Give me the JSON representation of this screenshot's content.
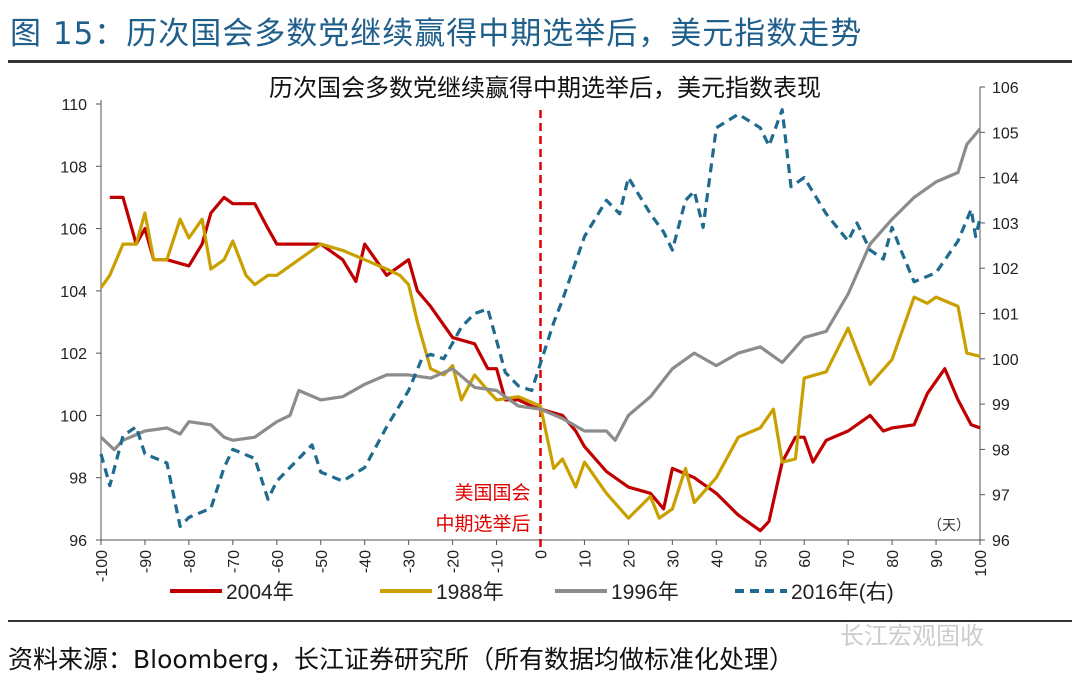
{
  "header": {
    "title": "图 15：历次国会多数党继续赢得中期选举后，美元指数走势"
  },
  "footer": {
    "source": "资料来源：Bloomberg，长江证券研究所（所有数据均做标准化处理）",
    "watermark": "长江宏观固收"
  },
  "chart_data": {
    "type": "line",
    "title": "历次国会多数党继续赢得中期选举后，美元指数表现",
    "xlabel": "（天）",
    "xlim": [
      -100,
      100
    ],
    "xticks": [
      "-100",
      "-90",
      "-80",
      "-70",
      "-60",
      "-50",
      "-40",
      "-30",
      "-20",
      "-10",
      "0",
      "10",
      "20",
      "30",
      "40",
      "50",
      "60",
      "70",
      "80",
      "90",
      "100"
    ],
    "ylim_left": [
      96,
      110
    ],
    "yticks_left": [
      "96",
      "98",
      "100",
      "102",
      "104",
      "106",
      "108",
      "110"
    ],
    "ylim_right": [
      96,
      106
    ],
    "yticks_right": [
      "96",
      "97",
      "98",
      "99",
      "100",
      "101",
      "102",
      "103",
      "104",
      "105",
      "106"
    ],
    "annotation": [
      "美国国会",
      "中期选举后"
    ],
    "legend_position": "bottom",
    "series": [
      {
        "name": "2004年",
        "axis": "left",
        "color": "#c00000",
        "dash": false,
        "x": [
          -98,
          -95,
          -92,
          -90,
          -88,
          -85,
          -80,
          -77,
          -75,
          -72,
          -70,
          -65,
          -62,
          -60,
          -55,
          -50,
          -45,
          -42,
          -40,
          -35,
          -30,
          -28,
          -25,
          -20,
          -15,
          -12,
          -10,
          -8,
          -5,
          -2,
          0,
          5,
          8,
          10,
          15,
          20,
          25,
          28,
          30,
          35,
          40,
          45,
          50,
          52,
          55,
          58,
          60,
          62,
          65,
          70,
          75,
          78,
          80,
          85,
          88,
          92,
          95,
          98,
          100
        ],
        "y": [
          107,
          107,
          105.5,
          106,
          105,
          105,
          104.8,
          105.5,
          106.5,
          107,
          106.8,
          106.8,
          106,
          105.5,
          105.5,
          105.5,
          105,
          104.3,
          105.5,
          104.5,
          105,
          104,
          103.5,
          102.5,
          102.3,
          101.5,
          101.5,
          100.5,
          100.5,
          100.3,
          100.2,
          100,
          99.5,
          99,
          98.2,
          97.7,
          97.5,
          97,
          98.3,
          98,
          97.5,
          96.8,
          96.3,
          96.6,
          98.5,
          99.3,
          99.3,
          98.5,
          99.2,
          99.5,
          100,
          99.5,
          99.6,
          99.7,
          100.7,
          101.5,
          100.5,
          99.7,
          99.6
        ]
      },
      {
        "name": "1988年",
        "axis": "left",
        "color": "#c9a000",
        "dash": false,
        "x": [
          -100,
          -98,
          -95,
          -92,
          -90,
          -88,
          -85,
          -82,
          -80,
          -77,
          -75,
          -72,
          -70,
          -67,
          -65,
          -62,
          -60,
          -55,
          -50,
          -45,
          -40,
          -35,
          -32,
          -30,
          -28,
          -25,
          -22,
          -20,
          -18,
          -15,
          -12,
          -10,
          -5,
          0,
          3,
          5,
          8,
          10,
          15,
          20,
          25,
          27,
          30,
          33,
          35,
          40,
          45,
          50,
          53,
          55,
          58,
          60,
          65,
          70,
          75,
          80,
          85,
          88,
          90,
          95,
          97,
          100
        ],
        "y": [
          104.1,
          104.5,
          105.5,
          105.5,
          106.5,
          105,
          105,
          106.3,
          105.7,
          106.3,
          104.7,
          105,
          105.6,
          104.5,
          104.2,
          104.5,
          104.5,
          105,
          105.5,
          105.3,
          105,
          104.7,
          104.5,
          104.2,
          103,
          101.5,
          101.3,
          101.6,
          100.5,
          101.3,
          100.8,
          100.5,
          100.6,
          100.3,
          98.3,
          98.6,
          97.7,
          98.5,
          97.5,
          96.7,
          97.4,
          96.7,
          97,
          98.3,
          97.2,
          98,
          99.3,
          99.6,
          100.2,
          98.5,
          98.6,
          101.2,
          101.4,
          102.8,
          101,
          101.8,
          103.8,
          103.6,
          103.8,
          103.5,
          102,
          101.9
        ]
      },
      {
        "name": "1996年",
        "axis": "left",
        "color": "#8c8c8c",
        "dash": false,
        "x": [
          -100,
          -97,
          -95,
          -90,
          -85,
          -82,
          -80,
          -75,
          -72,
          -70,
          -65,
          -60,
          -57,
          -55,
          -50,
          -45,
          -40,
          -35,
          -30,
          -25,
          -20,
          -15,
          -10,
          -5,
          0,
          5,
          10,
          15,
          17,
          20,
          25,
          30,
          35,
          40,
          45,
          50,
          55,
          60,
          65,
          70,
          75,
          80,
          85,
          90,
          95,
          97,
          100
        ],
        "y": [
          99.3,
          98.9,
          99.2,
          99.5,
          99.6,
          99.4,
          99.8,
          99.7,
          99.3,
          99.2,
          99.3,
          99.8,
          100,
          100.8,
          100.5,
          100.6,
          101,
          101.3,
          101.3,
          101.2,
          101.5,
          100.9,
          100.8,
          100.3,
          100.2,
          99.9,
          99.5,
          99.5,
          99.2,
          100,
          100.6,
          101.5,
          102,
          101.6,
          102,
          102.2,
          101.7,
          102.5,
          102.7,
          103.9,
          105.5,
          106.3,
          107,
          107.5,
          107.8,
          108.7,
          109.2
        ]
      },
      {
        "name": "2016年(右)",
        "axis": "right",
        "color": "#1f6a8f",
        "dash": true,
        "x": [
          -100,
          -98,
          -95,
          -92,
          -90,
          -85,
          -82,
          -80,
          -75,
          -72,
          -70,
          -65,
          -62,
          -60,
          -55,
          -52,
          -50,
          -45,
          -40,
          -35,
          -30,
          -27,
          -25,
          -22,
          -18,
          -15,
          -12,
          -10,
          -8,
          -5,
          -2,
          0,
          3,
          5,
          10,
          15,
          18,
          20,
          25,
          28,
          30,
          33,
          35,
          37,
          40,
          45,
          50,
          52,
          55,
          57,
          60,
          65,
          70,
          72,
          75,
          78,
          80,
          82,
          85,
          90,
          95,
          98,
          99,
          100
        ],
        "y": [
          97.9,
          97.2,
          98.3,
          98.5,
          97.9,
          97.7,
          96.3,
          96.5,
          96.7,
          97.6,
          98,
          97.8,
          96.9,
          97.3,
          97.8,
          98.1,
          97.5,
          97.3,
          97.6,
          98.5,
          99.3,
          100,
          100.1,
          100,
          100.7,
          101,
          101.1,
          100.4,
          99.7,
          99.4,
          99.3,
          99.9,
          100.8,
          101.3,
          102.7,
          103.5,
          103.2,
          104,
          103.2,
          102.8,
          102.4,
          103.5,
          103.7,
          102.9,
          105.1,
          105.4,
          105.1,
          104.7,
          105.5,
          103.8,
          104,
          103.2,
          102.6,
          103,
          102.4,
          102.2,
          102.9,
          102.4,
          101.7,
          101.9,
          102.6,
          103.3,
          102.7,
          103.1
        ]
      }
    ]
  }
}
